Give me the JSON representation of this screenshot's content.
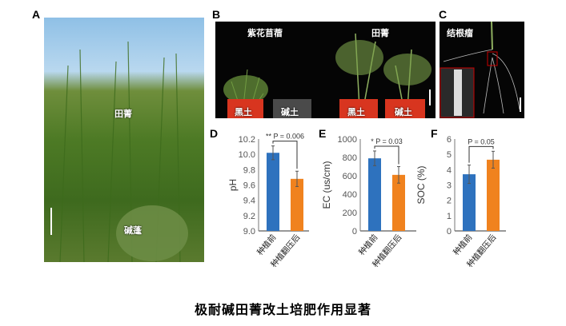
{
  "panels": {
    "A": {
      "label": "A",
      "texts": [
        "田菁",
        "碱蓬"
      ]
    },
    "B": {
      "label": "B",
      "texts": [
        "紫花苜蓿",
        "田菁"
      ],
      "pots": [
        "黑土",
        "碱土",
        "黑土",
        "碱土"
      ]
    },
    "C": {
      "label": "C",
      "texts": [
        "结根瘤"
      ]
    }
  },
  "caption": "极耐碱田菁改土培肥作用显著",
  "colors": {
    "before": "#2e72be",
    "after": "#f0821e"
  },
  "chart_data": [
    {
      "panel": "D",
      "type": "bar",
      "categories": [
        "种植前",
        "种植翻压后"
      ],
      "values": [
        10.02,
        9.68
      ],
      "errors": [
        0.09,
        0.1
      ],
      "ylabel": "pH",
      "ylim": [
        9.0,
        10.2
      ],
      "yticks": [
        "9.0",
        "9.2",
        "9.4",
        "9.6",
        "9.8",
        "10.0",
        "10.2"
      ],
      "annotation": {
        "stars": "**",
        "text": "P = 0.006"
      }
    },
    {
      "panel": "E",
      "type": "bar",
      "categories": [
        "种植前",
        "种植翻压后"
      ],
      "values": [
        790,
        610
      ],
      "errors": [
        80,
        90
      ],
      "ylabel": "EC (us/cm)",
      "ylim": [
        0,
        1000
      ],
      "yticks": [
        "0",
        "200",
        "400",
        "600",
        "800",
        "1000"
      ],
      "annotation": {
        "stars": "*",
        "text": "P = 0.03"
      }
    },
    {
      "panel": "F",
      "type": "bar",
      "categories": [
        "种植前",
        "种植翻压后"
      ],
      "values": [
        3.7,
        4.65
      ],
      "errors": [
        0.6,
        0.55
      ],
      "ylabel": "SOC (%)",
      "ylim": [
        0,
        6
      ],
      "yticks": [
        "0",
        "1",
        "2",
        "3",
        "4",
        "5",
        "6"
      ],
      "annotation": {
        "stars": "",
        "text": "P = 0.05"
      }
    }
  ]
}
